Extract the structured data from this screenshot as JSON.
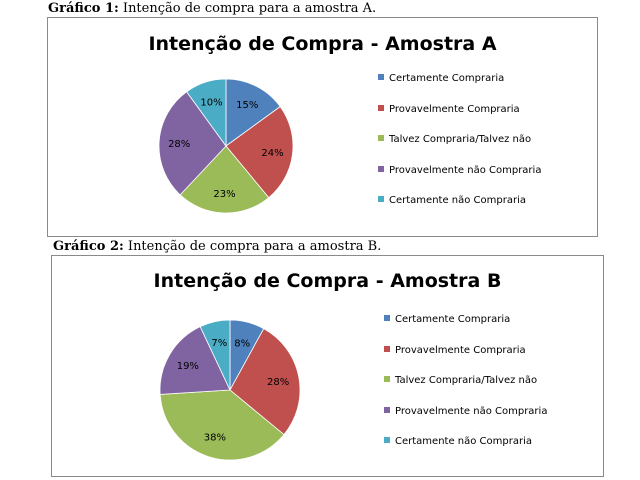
{
  "captions": [
    {
      "prefix": "Gráfico 1:",
      "text": " Intenção de compra para a amostra A."
    },
    {
      "prefix": "Gráfico 2:",
      "text": " Intenção de compra para a amostra B."
    }
  ],
  "colors": {
    "certamente_compraria": "#4f81bd",
    "provavelmente_compraria": "#c0504d",
    "talvez": "#9bbb59",
    "provavelmente_nao": "#8064a2",
    "certamente_nao": "#4bacc6"
  },
  "chart_data": [
    {
      "type": "pie",
      "title": "Intenção de Compra - Amostra A",
      "categories": [
        "Certamente Compraria",
        "Provavelmente Compraria",
        "Talvez Compraria/Talvez não",
        "Provavelmente não Compraria",
        "Certamente não Compraria"
      ],
      "values": [
        15,
        24,
        23,
        28,
        10
      ],
      "labels": [
        "15%",
        "24%",
        "23%",
        "28%",
        "10%"
      ],
      "legend_position": "right"
    },
    {
      "type": "pie",
      "title": "Intenção de Compra - Amostra B",
      "categories": [
        "Certamente Compraria",
        "Provavelmente Compraria",
        "Talvez Compraria/Talvez não",
        "Provavelmente não Compraria",
        "Certamente não Compraria"
      ],
      "values": [
        8,
        28,
        38,
        19,
        7
      ],
      "labels": [
        "8%",
        "28%",
        "38%",
        "19%",
        "7%"
      ],
      "legend_position": "right"
    }
  ]
}
